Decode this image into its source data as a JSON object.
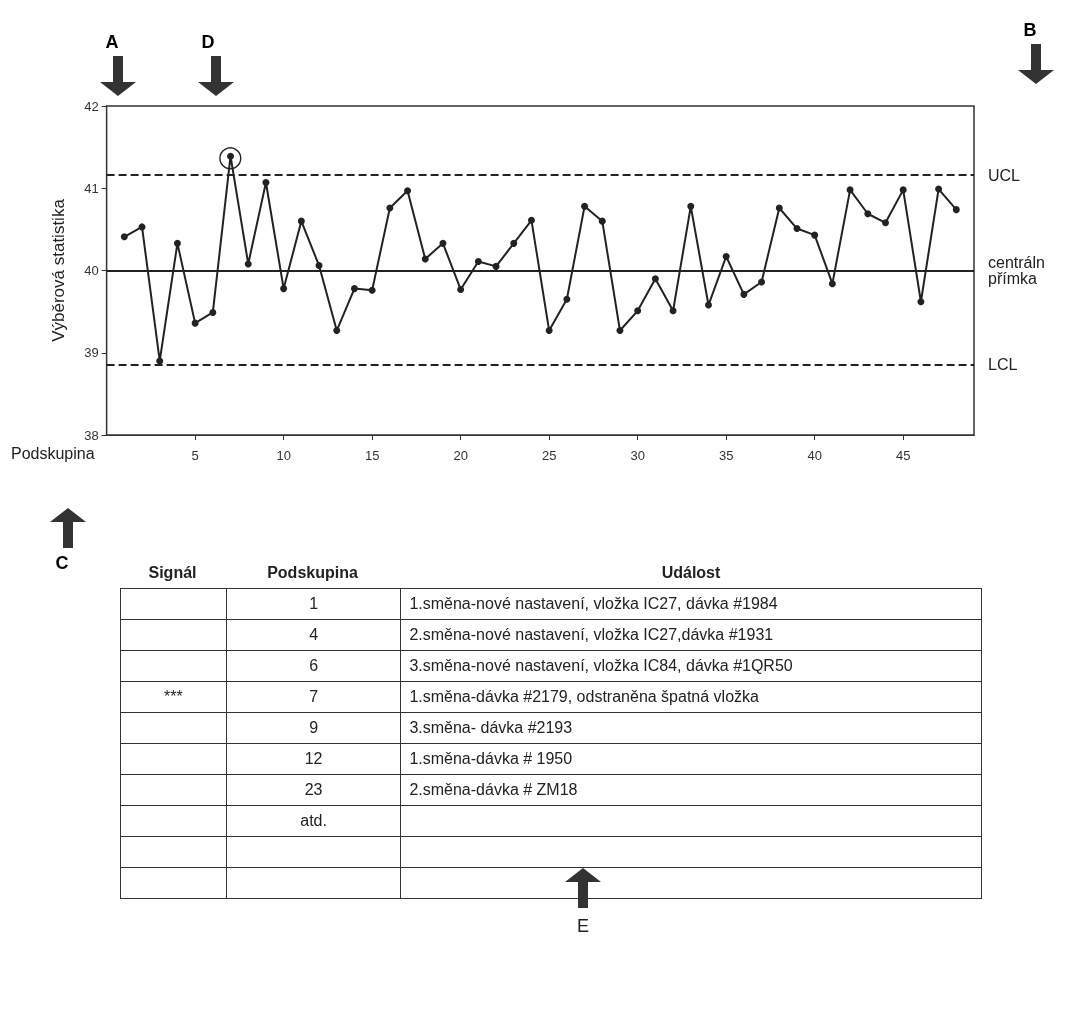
{
  "chart_data": [
    {
      "type": "line",
      "ylabel": "Výběrová statistika",
      "xlabel": "Podskupina",
      "x": [
        1,
        2,
        3,
        4,
        5,
        6,
        7,
        8,
        9,
        10,
        11,
        12,
        13,
        14,
        15,
        16,
        17,
        18,
        19,
        20,
        21,
        22,
        23,
        24,
        25,
        26,
        27,
        28,
        29,
        30,
        31,
        32,
        33,
        34,
        35,
        36,
        37,
        38,
        39,
        40,
        41,
        42,
        43,
        44,
        45,
        46,
        47,
        48
      ],
      "series": [
        {
          "color": "#222222",
          "values": [
            40.41,
            40.53,
            38.9,
            40.33,
            39.36,
            39.49,
            41.39,
            40.08,
            41.07,
            39.78,
            40.6,
            40.06,
            39.27,
            39.78,
            39.76,
            40.76,
            40.97,
            40.14,
            40.33,
            39.77,
            40.11,
            40.05,
            40.33,
            40.61,
            39.27,
            39.65,
            40.78,
            40.6,
            39.27,
            39.51,
            39.9,
            39.51,
            40.78,
            39.58,
            40.17,
            39.71,
            39.86,
            40.76,
            40.51,
            40.43,
            39.84,
            40.98,
            40.69,
            40.58,
            40.98,
            39.62,
            40.99,
            40.74
          ]
        }
      ],
      "xlim": [
        0,
        49
      ],
      "xticks": [
        5,
        10,
        15,
        20,
        25,
        30,
        35,
        40,
        45
      ],
      "ylim": [
        38,
        42
      ],
      "yticks": [
        38,
        39,
        40,
        41,
        42
      ],
      "marker": "circle",
      "line_style": "solid",
      "ref_lines": [
        {
          "axis": "y",
          "value": 41.16,
          "label": "UCL",
          "line_style": "dashed"
        },
        {
          "axis": "y",
          "value": 40,
          "label": "centráln přímka",
          "line_style": "solid"
        },
        {
          "axis": "y",
          "value": 38.86,
          "label": "LCL",
          "line_style": "dashed"
        }
      ],
      "annotations": [
        "A",
        "D",
        "B",
        "C",
        {
          "text": "◯",
          "x": 7,
          "y": 41.39
        }
      ]
    },
    {
      "type": "other",
      "categories": [
        "Signál",
        "Podskupina",
        "Událost"
      ],
      "cell_labels": [
        [
          null,
          "1",
          "1.směna-nové nastavení, vložka IC27, dávka #1984"
        ],
        [
          null,
          "4",
          "2.směna-nové nastavení, vložka IC27,dávka #1931"
        ],
        [
          null,
          "6",
          "3.směna-nové nastavení, vložka IC84, dávka #1QR50"
        ],
        [
          "***",
          "7",
          "1.směna-dávka #2179, odstraněna špatná vložka"
        ],
        [
          null,
          "9",
          "3.směna- dávka #2193"
        ],
        [
          null,
          "12",
          "1.směna-dávka # 1950"
        ],
        [
          null,
          "23",
          "2.směna-dávka # ZM18"
        ],
        [
          null,
          "atd.",
          null
        ],
        [
          null,
          null,
          null
        ],
        [
          null,
          null,
          null
        ]
      ],
      "annotations": [
        "E"
      ]
    }
  ]
}
